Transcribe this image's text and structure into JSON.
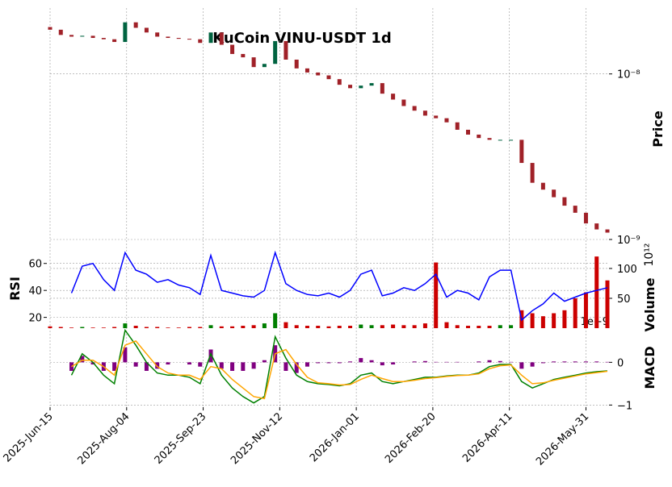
{
  "chart_data": {
    "type": "candlestick",
    "title": "KuCoin VINU-USDT 1d",
    "x": [
      "2025-06-15",
      "2025-06-22",
      "2025-06-29",
      "2025-07-06",
      "2025-07-13",
      "2025-07-20",
      "2025-07-27",
      "2025-08-03",
      "2025-08-10",
      "2025-08-17",
      "2025-08-24",
      "2025-08-31",
      "2025-09-07",
      "2025-09-14",
      "2025-09-21",
      "2025-09-28",
      "2025-10-05",
      "2025-10-12",
      "2025-10-19",
      "2025-10-26",
      "2025-11-02",
      "2025-11-09",
      "2025-11-16",
      "2025-11-23",
      "2025-11-30",
      "2025-12-07",
      "2025-12-14",
      "2025-12-21",
      "2025-12-28",
      "2026-01-04",
      "2026-01-11",
      "2026-01-18",
      "2026-01-25",
      "2026-02-01",
      "2026-02-08",
      "2026-02-15",
      "2026-02-22",
      "2026-03-01",
      "2026-03-08",
      "2026-03-15",
      "2026-03-22",
      "2026-03-29",
      "2026-04-05",
      "2026-04-12",
      "2026-04-19",
      "2026-04-26",
      "2026-05-03",
      "2026-05-10",
      "2026-05-17",
      "2026-05-24",
      "2026-05-31",
      "2026-06-07",
      "2026-06-14"
    ],
    "xlim": [
      "2025-06-15",
      "2026-06-14"
    ],
    "xticks": [
      {
        "value": "2025-06-15",
        "label": "2025-Jun-15"
      },
      {
        "value": "2025-08-04",
        "label": "2025-Aug-04"
      },
      {
        "value": "2025-09-23",
        "label": "2025-Sep-23"
      },
      {
        "value": "2025-11-12",
        "label": "2025-Nov-12"
      },
      {
        "value": "2026-01-01",
        "label": "2026-Jan-01"
      },
      {
        "value": "2026-02-20",
        "label": "2026-Feb-20"
      },
      {
        "value": "2026-04-11",
        "label": "2026-Apr-11"
      },
      {
        "value": "2026-05-31",
        "label": "2026-May-31"
      }
    ],
    "grid": true,
    "price": {
      "label": "Price",
      "log": true,
      "ylim": [
        1e-09,
        2.5e-08
      ],
      "yticks": [
        {
          "value": 1e-08,
          "label": "10⁻⁸"
        },
        {
          "value": 1e-09,
          "label": "10⁻⁹"
        }
      ],
      "up_color": "#006340",
      "down_color": "#a02128",
      "open": [
        1.92e-08,
        1.85e-08,
        1.72e-08,
        1.68e-08,
        1.7e-08,
        1.65e-08,
        1.62e-08,
        1.56e-08,
        2.05e-08,
        1.9e-08,
        1.78e-08,
        1.68e-08,
        1.65e-08,
        1.63e-08,
        1.62e-08,
        1.54e-08,
        1.78e-08,
        1.5e-08,
        1.32e-08,
        1.26e-08,
        1.1e-08,
        1.15e-08,
        1.58e-08,
        1.22e-08,
        1.08e-08,
        1.02e-08,
        9.8e-09,
        9.3e-09,
        8.6e-09,
        8.2e-09,
        8.5e-09,
        8.8e-09,
        7.6e-09,
        7e-09,
        6.4e-09,
        6e-09,
        5.6e-09,
        5.4e-09,
        5.1e-09,
        4.6e-09,
        4.3e-09,
        4.1e-09,
        4e-09,
        4e-09,
        4e-09,
        2.9e-09,
        2.2e-09,
        2e-09,
        1.8e-09,
        1.6e-09,
        1.45e-09,
        1.25e-09,
        1.15e-09
      ],
      "close": [
        1.85e-08,
        1.72e-08,
        1.68e-08,
        1.7e-08,
        1.65e-08,
        1.62e-08,
        1.56e-08,
        2.05e-08,
        1.9e-08,
        1.78e-08,
        1.68e-08,
        1.65e-08,
        1.63e-08,
        1.62e-08,
        1.54e-08,
        1.78e-08,
        1.5e-08,
        1.32e-08,
        1.26e-08,
        1.1e-08,
        1.15e-08,
        1.58e-08,
        1.22e-08,
        1.08e-08,
        1.02e-08,
        9.8e-09,
        9.3e-09,
        8.6e-09,
        8.2e-09,
        8.5e-09,
        8.8e-09,
        7.6e-09,
        7e-09,
        6.4e-09,
        6e-09,
        5.6e-09,
        5.4e-09,
        5.1e-09,
        4.6e-09,
        4.3e-09,
        4.1e-09,
        4e-09,
        4e-09,
        4e-09,
        2.9e-09,
        2.2e-09,
        2e-09,
        1.8e-09,
        1.6e-09,
        1.45e-09,
        1.25e-09,
        1.15e-09,
        1.1e-09
      ]
    },
    "rsi": {
      "label": "RSI",
      "color": "blue",
      "ylim": [
        12,
        70
      ],
      "yticks": [
        20,
        40,
        60
      ],
      "values": [
        null,
        null,
        38,
        58,
        60,
        48,
        40,
        68,
        55,
        52,
        46,
        48,
        44,
        42,
        37,
        66,
        40,
        38,
        36,
        35,
        40,
        68,
        45,
        40,
        37,
        36,
        38,
        35,
        40,
        52,
        55,
        36,
        38,
        42,
        40,
        45,
        52,
        35,
        40,
        38,
        33,
        50,
        55,
        55,
        18,
        25,
        30,
        38,
        32,
        35,
        38,
        40,
        42
      ]
    },
    "volume": {
      "label": "Volume",
      "offset_label": "10¹²",
      "up_color": "#007f00",
      "down_color": "#cc0000",
      "ylim": [
        0,
        131
      ],
      "yticks": [
        50,
        100
      ],
      "values": [
        3,
        2,
        1,
        2,
        1,
        1,
        2,
        8,
        4,
        2,
        2,
        1,
        1,
        2,
        2,
        5,
        3,
        3,
        4,
        5,
        8,
        25,
        10,
        5,
        4,
        4,
        3,
        4,
        4,
        6,
        5,
        5,
        6,
        5,
        5,
        8,
        110,
        10,
        5,
        4,
        4,
        4,
        5,
        5,
        30,
        25,
        20,
        25,
        30,
        50,
        60,
        120,
        80
      ]
    },
    "macd": {
      "label": "MACD",
      "offset_label": "1e−9",
      "macd_color": "green",
      "signal_color": "orange",
      "histogram_color": "purple",
      "ylim": [
        -1.05,
        0.8
      ],
      "yticks": [
        0,
        {
          "value": -1,
          "label": "−1"
        }
      ],
      "macd": [
        null,
        null,
        -0.3,
        0.2,
        0.0,
        -0.3,
        -0.5,
        0.75,
        0.4,
        0.0,
        -0.25,
        -0.3,
        -0.3,
        -0.35,
        -0.5,
        0.2,
        -0.3,
        -0.6,
        -0.8,
        -0.95,
        -0.8,
        0.6,
        0.1,
        -0.3,
        -0.45,
        -0.5,
        -0.52,
        -0.55,
        -0.5,
        -0.3,
        -0.25,
        -0.45,
        -0.5,
        -0.45,
        -0.4,
        -0.35,
        -0.35,
        -0.32,
        -0.3,
        -0.3,
        -0.25,
        -0.1,
        -0.05,
        -0.05,
        -0.45,
        -0.6,
        -0.5,
        -0.4,
        -0.35,
        -0.3,
        -0.25,
        -0.22,
        -0.2
      ],
      "signal": [
        null,
        null,
        -0.1,
        0.05,
        0.05,
        -0.1,
        -0.3,
        0.4,
        0.5,
        0.2,
        -0.1,
        -0.25,
        -0.3,
        -0.3,
        -0.4,
        -0.1,
        -0.15,
        -0.4,
        -0.6,
        -0.8,
        -0.85,
        0.2,
        0.3,
        -0.05,
        -0.35,
        -0.48,
        -0.5,
        -0.53,
        -0.52,
        -0.4,
        -0.3,
        -0.38,
        -0.45,
        -0.45,
        -0.42,
        -0.38,
        -0.36,
        -0.33,
        -0.31,
        -0.3,
        -0.27,
        -0.15,
        -0.08,
        -0.06,
        -0.3,
        -0.5,
        -0.48,
        -0.42,
        -0.37,
        -0.32,
        -0.27,
        -0.24,
        -0.21
      ],
      "histogram": [
        null,
        null,
        -0.2,
        0.15,
        -0.05,
        -0.2,
        -0.2,
        0.35,
        -0.1,
        -0.2,
        -0.15,
        -0.05,
        0,
        -0.05,
        -0.1,
        0.3,
        -0.15,
        -0.2,
        -0.2,
        -0.15,
        0.05,
        0.4,
        -0.2,
        -0.25,
        -0.1,
        -0.02,
        -0.02,
        -0.02,
        0.02,
        0.1,
        0.05,
        -0.07,
        -0.05,
        0,
        0.02,
        0.03,
        0.01,
        0.01,
        0.01,
        0,
        0.02,
        0.05,
        0.03,
        0.01,
        -0.15,
        -0.1,
        -0.02,
        0.02,
        0.02,
        0.02,
        0.02,
        0.02,
        0.01
      ]
    }
  }
}
